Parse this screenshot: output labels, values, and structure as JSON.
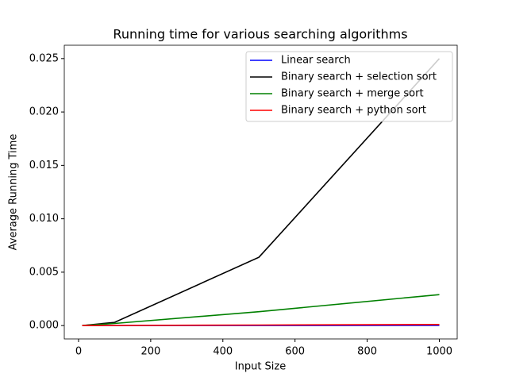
{
  "chart_data": {
    "type": "line",
    "title": "Running time for various searching algorithms",
    "xlabel": "Input Size",
    "ylabel": "Average Running Time",
    "x": [
      10,
      100,
      500,
      1000
    ],
    "series": [
      {
        "name": "Linear search",
        "color": "#0000ff",
        "values": [
          0.0,
          0.0,
          1e-05,
          2e-05
        ]
      },
      {
        "name": "Binary search + selection sort",
        "color": "#000000",
        "values": [
          0.0,
          0.0003,
          0.0064,
          0.025
        ]
      },
      {
        "name": "Binary search + merge sort",
        "color": "#008000",
        "values": [
          0.0,
          0.0002,
          0.0013,
          0.0029
        ]
      },
      {
        "name": "Binary search + python sort",
        "color": "#ff0000",
        "values": [
          0.0,
          1e-05,
          5e-05,
          0.0001
        ]
      }
    ],
    "xlim": [
      -39.5,
      1049.5
    ],
    "xticks": [
      0,
      200,
      400,
      600,
      800,
      1000
    ],
    "ylim": [
      -0.00125,
      0.02625
    ],
    "yticks": [
      {
        "value": 0,
        "label": "0.000"
      },
      {
        "value": 0.005,
        "label": "0.005"
      },
      {
        "value": 0.01,
        "label": "0.010"
      },
      {
        "value": 0.015,
        "label": "0.015"
      },
      {
        "value": 0.02,
        "label": "0.020"
      },
      {
        "value": 0.025,
        "label": "0.025"
      }
    ],
    "legend": "upper right",
    "grid": false
  }
}
